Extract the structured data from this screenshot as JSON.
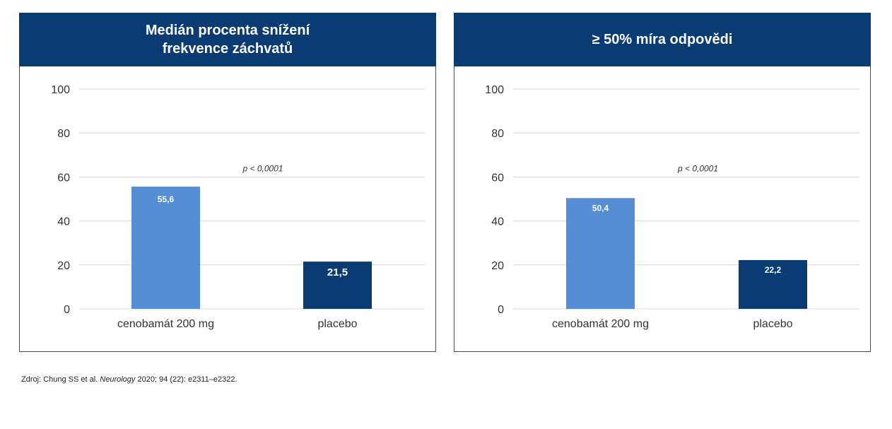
{
  "chart_data": [
    {
      "type": "bar",
      "title": "Medián procenta snížení\nfrekvence záchvatů",
      "categories": [
        "cenobamát 200 mg",
        "placebo"
      ],
      "values": [
        55.6,
        21.5
      ],
      "value_labels": [
        "55,6",
        "21,5"
      ],
      "colors": [
        "#558ed5",
        "#0a3b72"
      ],
      "xlabel": "",
      "ylabel": "",
      "ylim": [
        0,
        100
      ],
      "yticks": [
        0,
        20,
        40,
        60,
        80,
        100
      ],
      "grid": true,
      "annotation": "p < 0,0001"
    },
    {
      "type": "bar",
      "title": "≥ 50% míra odpovědi",
      "categories": [
        "cenobamát 200 mg",
        "placebo"
      ],
      "values": [
        50.4,
        22.2
      ],
      "value_labels": [
        "50,4",
        "22,2"
      ],
      "colors": [
        "#558ed5",
        "#0a3b72"
      ],
      "xlabel": "",
      "ylabel": "",
      "ylim": [
        0,
        100
      ],
      "yticks": [
        0,
        20,
        40,
        60,
        80,
        100
      ],
      "grid": true,
      "annotation": "p < 0,0001"
    }
  ],
  "source": {
    "prefix": "Zdroj: Chung SS et al. ",
    "journal": "Neurology",
    "suffix": " 2020; 94 (22): e2311–e2322."
  }
}
